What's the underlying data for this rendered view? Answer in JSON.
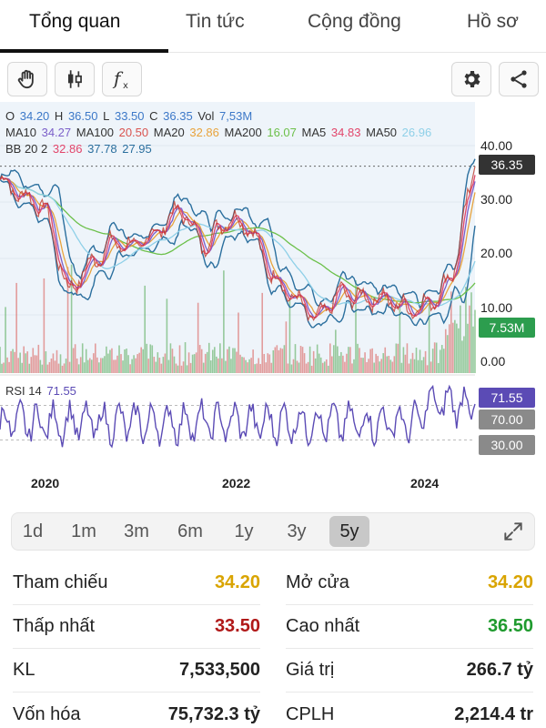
{
  "tabs": [
    {
      "label": "Tổng quan",
      "active": true
    },
    {
      "label": "Tin tức",
      "active": false
    },
    {
      "label": "Cộng đồng",
      "active": false
    },
    {
      "label": "Hồ sơ",
      "active": false
    }
  ],
  "toolbar": {
    "icons": [
      "hand-icon",
      "candlestick-icon",
      "function-icon",
      "gear-icon",
      "share-icon"
    ],
    "fx_label": "fx"
  },
  "legend": {
    "ohlc": [
      {
        "key": "O",
        "value": "34.20"
      },
      {
        "key": "H",
        "value": "36.50"
      },
      {
        "key": "L",
        "value": "33.50"
      },
      {
        "key": "C",
        "value": "36.35"
      },
      {
        "key": "Vol",
        "value": "7,53M"
      }
    ],
    "ma": [
      {
        "key": "MA10",
        "value": "34.27",
        "color": "#7b5fc9"
      },
      {
        "key": "MA100",
        "value": "20.50",
        "color": "#d9534f"
      },
      {
        "key": "MA20",
        "value": "32.86",
        "color": "#e8a33c"
      },
      {
        "key": "MA200",
        "value": "16.07",
        "color": "#6cc04a"
      },
      {
        "key": "MA5",
        "value": "34.83",
        "color": "#e2466b"
      },
      {
        "key": "MA50",
        "value": "26.96",
        "color": "#8fd0e8"
      }
    ],
    "bb": {
      "label": "BB 20 2",
      "values": [
        {
          "value": "32.86",
          "color": "#e2466b"
        },
        {
          "value": "37.78",
          "color": "#2b6f9e"
        },
        {
          "value": "27.95",
          "color": "#2b6f9e"
        }
      ]
    },
    "rsi": {
      "label": "RSI 14",
      "value": "71.55",
      "color": "#5b4bb5"
    }
  },
  "price_axis": [
    "40.00",
    "30.00",
    "20.00",
    "10.00",
    "0.00"
  ],
  "tags": {
    "last_price": "36.35",
    "volume": "7.53M",
    "rsi_value": "71.55",
    "rsi_upper": "70.00",
    "rsi_lower": "30.00"
  },
  "x_axis": [
    "2020",
    "2022",
    "2024"
  ],
  "chart_data": {
    "type": "line",
    "x": [
      "2019-06",
      "2019-09",
      "2019-12",
      "2020-03",
      "2020-06",
      "2020-09",
      "2020-12",
      "2021-03",
      "2021-06",
      "2021-09",
      "2021-12",
      "2022-03",
      "2022-06",
      "2022-09",
      "2022-12",
      "2023-03",
      "2023-06",
      "2023-09",
      "2023-12",
      "2024-03",
      "2024-06",
      "2024-08"
    ],
    "series": [
      {
        "name": "C",
        "values": [
          34,
          31,
          29,
          14,
          19,
          23,
          22,
          25,
          29,
          22,
          27,
          26,
          17,
          13,
          9,
          14,
          13,
          13,
          11,
          12,
          17,
          36.35
        ]
      }
    ],
    "ylim": [
      0,
      40
    ]
  },
  "ranges": [
    {
      "label": "1d",
      "active": false
    },
    {
      "label": "1m",
      "active": false
    },
    {
      "label": "3m",
      "active": false
    },
    {
      "label": "6m",
      "active": false
    },
    {
      "label": "1y",
      "active": false
    },
    {
      "label": "3y",
      "active": false
    },
    {
      "label": "5y",
      "active": true
    }
  ],
  "stats": {
    "left": [
      {
        "label": "Tham chiếu",
        "value": "34.20",
        "color": "#d9a400"
      },
      {
        "label": "Thấp nhất",
        "value": "33.50",
        "color": "#b01818"
      },
      {
        "label": "KL",
        "value": "7,533,500",
        "color": "#222222"
      },
      {
        "label": "Vốn hóa",
        "value": "75,732.3 tỷ",
        "color": "#222222"
      }
    ],
    "right": [
      {
        "label": "Mở cửa",
        "value": "34.20",
        "color": "#d9a400"
      },
      {
        "label": "Cao nhất",
        "value": "36.50",
        "color": "#1f9a2e"
      },
      {
        "label": "Giá trị",
        "value": "266.7 tỷ",
        "color": "#222222"
      },
      {
        "label": "CPLH",
        "value": "2,214.4 tr",
        "color": "#222222"
      }
    ]
  },
  "colors": {
    "price_tag": "#333333",
    "rsi_line": "#5b4bb5",
    "bb_band": "#2b6f9e",
    "volume_up": "#4ca64c",
    "volume_down": "#d9534f"
  }
}
